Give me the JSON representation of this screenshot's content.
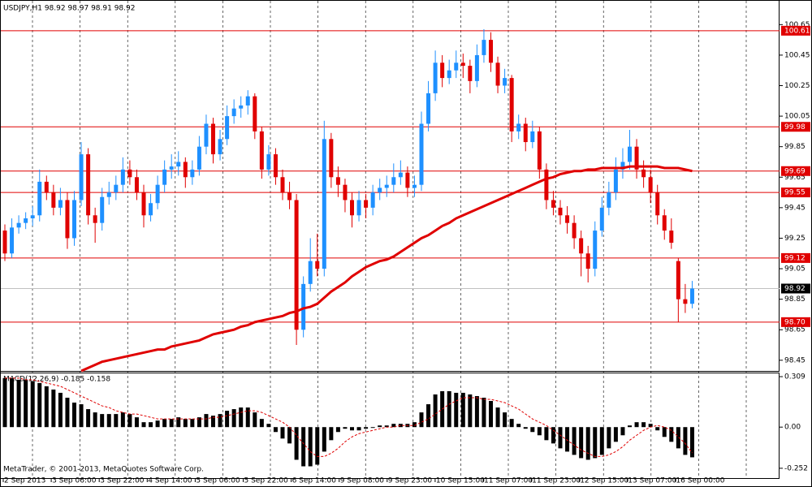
{
  "chart_data": {
    "type": "candlestick",
    "title": "USDJPY,H1 98.92 98.97 98.91 98.92",
    "indicator_title": "MACD(12,26,9) -0.185 -0.158",
    "footer": "MetaTrader, © 2001-2013, MetaQuotes Software Corp.",
    "categories": [
      "2 Sep 2013",
      "3 Sep 06:00",
      "3 Sep 22:00",
      "4 Sep 14:00",
      "5 Sep 06:00",
      "5 Sep 22:00",
      "6 Sep 14:00",
      "9 Sep 08:00",
      "9 Sep 23:00",
      "10 Sep 15:00",
      "11 Sep 07:00",
      "11 Sep 23:00",
      "12 Sep 15:00",
      "13 Sep 07:00",
      "16 Sep 00:00"
    ],
    "up_color": "#1e90ff",
    "down_color": "#e00000",
    "ma_color": "#e00000",
    "level_color": "#e00000",
    "ylim": [
      98.38,
      100.79
    ],
    "yticks": [
      100.65,
      100.45,
      100.25,
      100.05,
      99.85,
      99.65,
      99.45,
      99.25,
      99.05,
      98.85,
      98.65,
      98.45
    ],
    "levels": [
      100.61,
      99.98,
      99.69,
      99.55,
      99.12,
      {
        "value": 98.7,
        "label": "98.70"
      }
    ],
    "current_price": 98.92,
    "candles": [
      [
        99.3,
        99.34,
        99.1,
        99.15
      ],
      [
        99.15,
        99.38,
        99.12,
        99.32
      ],
      [
        99.32,
        99.4,
        99.28,
        99.35
      ],
      [
        99.35,
        99.42,
        99.31,
        99.38
      ],
      [
        99.38,
        99.46,
        99.33,
        99.4
      ],
      [
        99.4,
        99.7,
        99.36,
        99.62
      ],
      [
        99.62,
        99.66,
        99.5,
        99.55
      ],
      [
        99.55,
        99.6,
        99.4,
        99.45
      ],
      [
        99.45,
        99.58,
        99.4,
        99.5
      ],
      [
        99.5,
        99.55,
        99.18,
        99.25
      ],
      [
        99.25,
        99.56,
        99.2,
        99.5
      ],
      [
        99.5,
        99.88,
        99.46,
        99.8
      ],
      [
        99.8,
        99.84,
        99.34,
        99.4
      ],
      [
        99.4,
        99.45,
        99.22,
        99.35
      ],
      [
        99.35,
        99.58,
        99.3,
        99.52
      ],
      [
        99.52,
        99.62,
        99.47,
        99.55
      ],
      [
        99.55,
        99.66,
        99.5,
        99.6
      ],
      [
        99.6,
        99.78,
        99.55,
        99.7
      ],
      [
        99.7,
        99.76,
        99.6,
        99.65
      ],
      [
        99.65,
        99.7,
        99.5,
        99.55
      ],
      [
        99.55,
        99.6,
        99.32,
        99.4
      ],
      [
        99.4,
        99.54,
        99.36,
        99.48
      ],
      [
        99.48,
        99.66,
        99.44,
        99.6
      ],
      [
        99.6,
        99.76,
        99.55,
        99.7
      ],
      [
        99.7,
        99.8,
        99.64,
        99.72
      ],
      [
        99.72,
        99.82,
        99.66,
        99.75
      ],
      [
        99.75,
        99.78,
        99.58,
        99.65
      ],
      [
        99.65,
        99.76,
        99.6,
        99.7
      ],
      [
        99.7,
        99.92,
        99.66,
        99.85
      ],
      [
        99.85,
        100.06,
        99.8,
        100.0
      ],
      [
        100.0,
        100.04,
        99.74,
        99.8
      ],
      [
        99.8,
        99.96,
        99.76,
        99.9
      ],
      [
        99.9,
        100.12,
        99.86,
        100.05
      ],
      [
        100.05,
        100.16,
        100.0,
        100.1
      ],
      [
        100.1,
        100.18,
        100.04,
        100.12
      ],
      [
        100.12,
        100.22,
        100.06,
        100.18
      ],
      [
        100.18,
        100.2,
        99.9,
        99.95
      ],
      [
        99.95,
        99.98,
        99.64,
        99.7
      ],
      [
        99.7,
        99.86,
        99.66,
        99.8
      ],
      [
        99.8,
        99.84,
        99.6,
        99.65
      ],
      [
        99.65,
        99.7,
        99.5,
        99.55
      ],
      [
        99.55,
        99.62,
        99.44,
        99.5
      ],
      [
        99.5,
        99.54,
        98.55,
        98.65
      ],
      [
        98.65,
        99.0,
        98.6,
        98.95
      ],
      [
        98.95,
        99.25,
        98.9,
        99.1
      ],
      [
        99.1,
        99.28,
        99.0,
        99.05
      ],
      [
        99.05,
        100.02,
        99.0,
        99.9
      ],
      [
        99.9,
        99.94,
        99.58,
        99.65
      ],
      [
        99.65,
        99.72,
        99.52,
        99.6
      ],
      [
        99.6,
        99.64,
        99.42,
        99.5
      ],
      [
        99.5,
        99.55,
        99.32,
        99.4
      ],
      [
        99.4,
        99.56,
        99.36,
        99.5
      ],
      [
        99.5,
        99.54,
        99.38,
        99.45
      ],
      [
        99.45,
        99.6,
        99.4,
        99.55
      ],
      [
        99.55,
        99.64,
        99.5,
        99.58
      ],
      [
        99.58,
        99.66,
        99.52,
        99.6
      ],
      [
        99.6,
        99.74,
        99.55,
        99.65
      ],
      [
        99.65,
        99.76,
        99.6,
        99.68
      ],
      [
        99.68,
        99.72,
        99.52,
        99.58
      ],
      [
        99.58,
        99.66,
        99.52,
        99.6
      ],
      [
        99.6,
        100.08,
        99.56,
        100.0
      ],
      [
        100.0,
        100.28,
        99.95,
        100.2
      ],
      [
        100.2,
        100.48,
        100.15,
        100.4
      ],
      [
        100.4,
        100.45,
        100.24,
        100.3
      ],
      [
        100.3,
        100.42,
        100.26,
        100.35
      ],
      [
        100.35,
        100.48,
        100.3,
        100.4
      ],
      [
        100.4,
        100.46,
        100.3,
        100.38
      ],
      [
        100.38,
        100.42,
        100.2,
        100.28
      ],
      [
        100.28,
        100.52,
        100.24,
        100.45
      ],
      [
        100.45,
        100.62,
        100.4,
        100.55
      ],
      [
        100.55,
        100.6,
        100.34,
        100.4
      ],
      [
        100.4,
        100.44,
        100.2,
        100.25
      ],
      [
        100.25,
        100.36,
        100.2,
        100.3
      ],
      [
        100.3,
        100.32,
        99.88,
        99.95
      ],
      [
        99.95,
        100.06,
        99.9,
        100.0
      ],
      [
        100.0,
        100.04,
        99.82,
        99.88
      ],
      [
        99.88,
        100.02,
        99.84,
        99.95
      ],
      [
        99.95,
        99.98,
        99.64,
        99.7
      ],
      [
        99.7,
        99.74,
        99.44,
        99.5
      ],
      [
        99.5,
        99.56,
        99.4,
        99.45
      ],
      [
        99.45,
        99.5,
        99.34,
        99.4
      ],
      [
        99.4,
        99.46,
        99.28,
        99.35
      ],
      [
        99.35,
        99.4,
        99.18,
        99.25
      ],
      [
        99.25,
        99.3,
        99.0,
        99.15
      ],
      [
        99.15,
        99.2,
        98.96,
        99.05
      ],
      [
        99.05,
        99.36,
        99.0,
        99.3
      ],
      [
        99.3,
        99.52,
        99.26,
        99.45
      ],
      [
        99.45,
        99.62,
        99.4,
        99.55
      ],
      [
        99.55,
        99.78,
        99.5,
        99.7
      ],
      [
        99.7,
        99.84,
        99.64,
        99.75
      ],
      [
        99.75,
        99.96,
        99.7,
        99.85
      ],
      [
        99.85,
        99.9,
        99.64,
        99.7
      ],
      [
        99.7,
        99.76,
        99.58,
        99.65
      ],
      [
        99.65,
        99.7,
        99.48,
        99.55
      ],
      [
        99.55,
        99.6,
        99.34,
        99.4
      ],
      [
        99.4,
        99.44,
        99.24,
        99.3
      ],
      [
        99.3,
        99.38,
        99.18,
        99.22
      ],
      [
        99.1,
        99.12,
        98.7,
        98.85
      ],
      [
        98.85,
        98.95,
        98.76,
        98.82
      ],
      [
        98.82,
        98.97,
        98.79,
        98.92
      ]
    ],
    "ma": [
      null,
      null,
      null,
      null,
      null,
      null,
      null,
      null,
      null,
      null,
      null,
      98.38,
      98.4,
      98.42,
      98.44,
      98.45,
      98.46,
      98.47,
      98.48,
      98.49,
      98.5,
      98.51,
      98.52,
      98.52,
      98.54,
      98.55,
      98.56,
      98.57,
      98.58,
      98.6,
      98.62,
      98.63,
      98.64,
      98.65,
      98.67,
      98.68,
      98.7,
      98.71,
      98.72,
      98.73,
      98.74,
      98.76,
      98.77,
      98.79,
      98.8,
      98.82,
      98.86,
      98.9,
      98.93,
      98.96,
      99.0,
      99.03,
      99.06,
      99.08,
      99.1,
      99.11,
      99.13,
      99.16,
      99.19,
      99.22,
      99.25,
      99.27,
      99.3,
      99.33,
      99.35,
      99.38,
      99.4,
      99.42,
      99.44,
      99.46,
      99.48,
      99.5,
      99.52,
      99.54,
      99.56,
      99.58,
      99.6,
      99.62,
      99.64,
      99.65,
      99.67,
      99.68,
      99.69,
      99.69,
      99.7,
      99.7,
      99.71,
      99.71,
      99.71,
      99.71,
      99.72,
      99.72,
      99.72,
      99.72,
      99.72,
      99.71,
      99.71,
      99.71,
      99.7,
      99.69
    ],
    "macd_ylim": [
      -0.317,
      0.334
    ],
    "macd_yticks": [
      0.309,
      {
        "value": 0,
        "label": "0.00"
      },
      -0.252
    ],
    "macd_signal_color": "#e00000",
    "macd_hist": [
      0.3,
      0.3,
      0.29,
      0.29,
      0.28,
      0.27,
      0.25,
      0.23,
      0.21,
      0.18,
      0.15,
      0.14,
      0.11,
      0.09,
      0.08,
      0.08,
      0.08,
      0.09,
      0.08,
      0.06,
      0.03,
      0.03,
      0.04,
      0.05,
      0.05,
      0.06,
      0.05,
      0.05,
      0.06,
      0.08,
      0.07,
      0.08,
      0.1,
      0.11,
      0.12,
      0.12,
      0.09,
      0.05,
      0.02,
      -0.03,
      -0.07,
      -0.1,
      -0.2,
      -0.24,
      -0.24,
      -0.23,
      -0.15,
      -0.08,
      -0.03,
      -0.01,
      -0.02,
      -0.02,
      -0.01,
      0.0,
      0.01,
      0.01,
      0.02,
      0.02,
      0.02,
      0.03,
      0.09,
      0.14,
      0.2,
      0.22,
      0.22,
      0.21,
      0.21,
      0.2,
      0.19,
      0.18,
      0.16,
      0.12,
      0.09,
      0.05,
      0.02,
      -0.01,
      -0.03,
      -0.05,
      -0.08,
      -0.1,
      -0.13,
      -0.15,
      -0.17,
      -0.19,
      -0.2,
      -0.19,
      -0.17,
      -0.13,
      -0.09,
      -0.05,
      0.01,
      0.03,
      0.03,
      0.02,
      -0.02,
      -0.06,
      -0.09,
      -0.13,
      -0.17,
      -0.185
    ],
    "macd_signal": [
      0.3,
      0.3,
      0.3,
      0.29,
      0.29,
      0.28,
      0.27,
      0.26,
      0.25,
      0.23,
      0.21,
      0.19,
      0.17,
      0.15,
      0.13,
      0.12,
      0.1,
      0.09,
      0.08,
      0.08,
      0.07,
      0.06,
      0.05,
      0.05,
      0.05,
      0.05,
      0.05,
      0.05,
      0.05,
      0.05,
      0.06,
      0.06,
      0.07,
      0.08,
      0.09,
      0.1,
      0.1,
      0.09,
      0.07,
      0.05,
      0.03,
      0.0,
      -0.05,
      -0.1,
      -0.15,
      -0.18,
      -0.18,
      -0.16,
      -0.13,
      -0.09,
      -0.06,
      -0.04,
      -0.03,
      -0.02,
      -0.01,
      0.0,
      0.0,
      0.01,
      0.01,
      0.01,
      0.03,
      0.05,
      0.08,
      0.11,
      0.14,
      0.16,
      0.18,
      0.18,
      0.18,
      0.17,
      0.17,
      0.16,
      0.15,
      0.13,
      0.11,
      0.08,
      0.05,
      0.03,
      0.01,
      -0.02,
      -0.05,
      -0.08,
      -0.11,
      -0.14,
      -0.16,
      -0.18,
      -0.18,
      -0.17,
      -0.15,
      -0.12,
      -0.08,
      -0.05,
      -0.02,
      0.0,
      0.01,
      0.0,
      -0.02,
      -0.06,
      -0.1,
      -0.158
    ]
  }
}
